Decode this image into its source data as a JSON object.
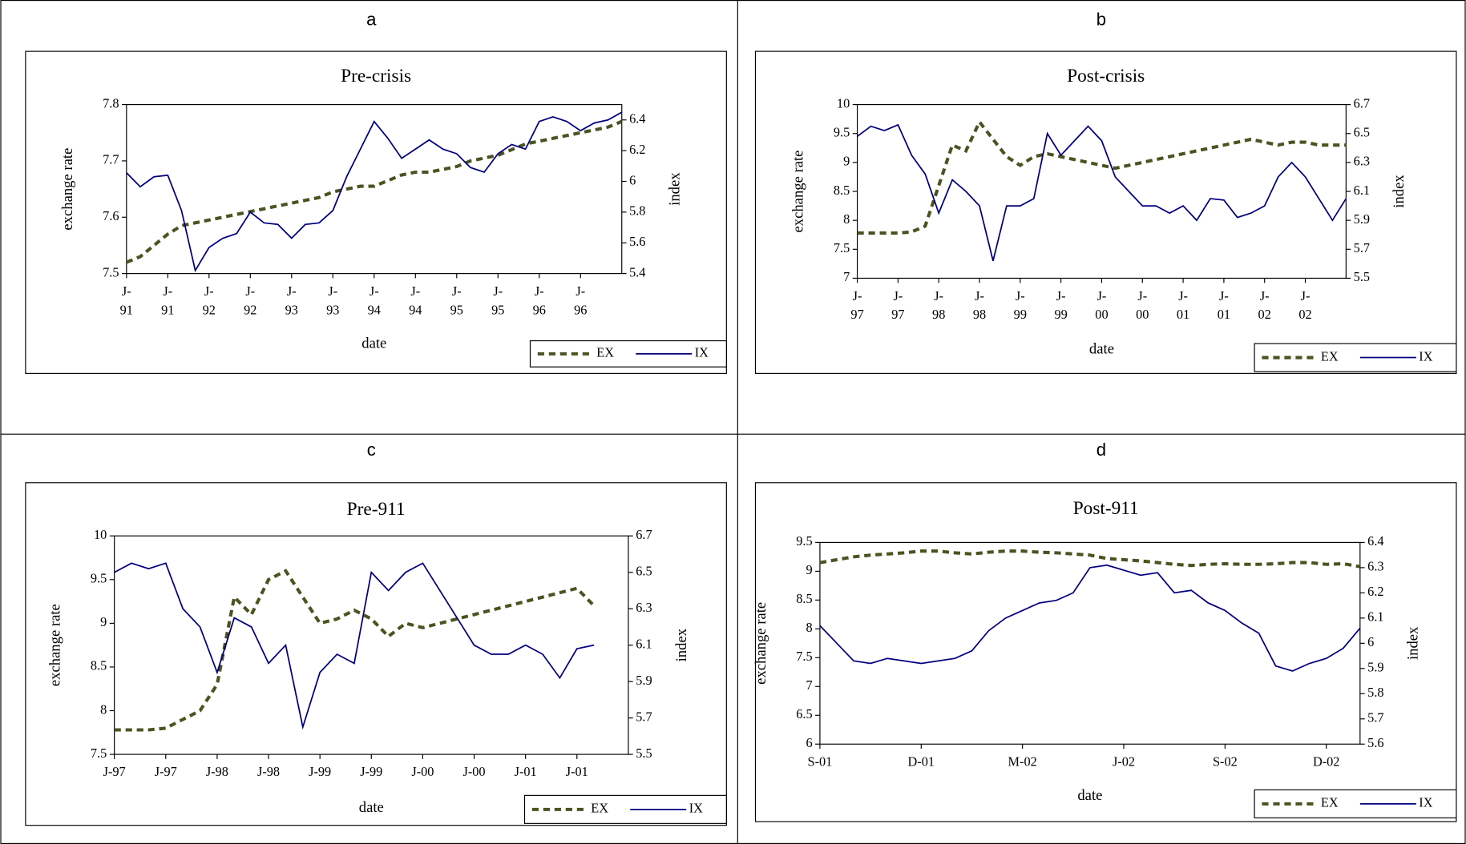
{
  "chart_data": [
    {
      "panel": "a",
      "type": "line",
      "title": "Pre-crisis",
      "xlabel": "date",
      "ylabel": "exchange rate",
      "y2label": "index",
      "x": [
        0,
        2,
        4,
        6,
        8,
        10,
        12,
        14,
        16,
        18,
        20,
        22,
        24,
        26,
        28,
        30,
        32,
        34,
        36,
        38,
        40,
        42,
        44,
        46,
        48,
        50,
        52,
        54,
        56,
        58,
        60,
        62,
        64,
        66,
        68,
        70,
        72
      ],
      "xlim": [
        0,
        72
      ],
      "xticks": [
        {
          "value": 0,
          "label": "J-91"
        },
        {
          "value": 6,
          "label": "J-91"
        },
        {
          "value": 12,
          "label": "J-92"
        },
        {
          "value": 18,
          "label": "J-92"
        },
        {
          "value": 24,
          "label": "J-93"
        },
        {
          "value": 30,
          "label": "J-93"
        },
        {
          "value": 36,
          "label": "J-94"
        },
        {
          "value": 42,
          "label": "J-94"
        },
        {
          "value": 48,
          "label": "J-95"
        },
        {
          "value": 54,
          "label": "J-95"
        },
        {
          "value": 60,
          "label": "J-96"
        },
        {
          "value": 66,
          "label": "J-96"
        }
      ],
      "xtick_wrap": true,
      "ylim": [
        7.5,
        7.8
      ],
      "yticks": [
        7.5,
        7.6,
        7.7,
        7.8
      ],
      "y2lim": [
        5.4,
        6.5
      ],
      "y2ticks": [
        5.4,
        5.6,
        5.8,
        6,
        6.2,
        6.4
      ],
      "legend": "lower right",
      "series": [
        {
          "name": "EX",
          "color": "#4b5320",
          "dash": true,
          "values": [
            7.52,
            7.53,
            7.55,
            7.57,
            7.585,
            7.59,
            7.595,
            7.6,
            7.605,
            7.61,
            7.615,
            7.62,
            7.625,
            7.63,
            7.635,
            7.645,
            7.65,
            7.655,
            7.655,
            7.665,
            7.675,
            7.68,
            7.68,
            7.685,
            7.69,
            7.7,
            7.705,
            7.71,
            7.72,
            7.73,
            7.735,
            7.74,
            7.745,
            7.75,
            7.755,
            7.76,
            7.77
          ]
        },
        {
          "name": "IX",
          "color": "#000080",
          "axis": "y2",
          "values": [
            6.056,
            5.965,
            6.03,
            6.04,
            5.81,
            5.42,
            5.57,
            5.63,
            5.66,
            5.8,
            5.73,
            5.72,
            5.63,
            5.72,
            5.73,
            5.81,
            6.03,
            6.21,
            6.39,
            6.28,
            6.15,
            6.21,
            6.27,
            6.21,
            6.18,
            6.09,
            6.06,
            6.18,
            6.24,
            6.21,
            6.39,
            6.42,
            6.39,
            6.33,
            6.38,
            6.4,
            6.45
          ]
        }
      ]
    },
    {
      "panel": "b",
      "type": "line",
      "title": "Post-crisis",
      "xlabel": "date",
      "ylabel": "exchange rate",
      "y2label": "index",
      "x": [
        0,
        2,
        4,
        6,
        8,
        10,
        12,
        14,
        16,
        18,
        20,
        22,
        24,
        26,
        28,
        30,
        32,
        34,
        36,
        38,
        40,
        42,
        44,
        46,
        48,
        50,
        52,
        54,
        56,
        58,
        60,
        62,
        64,
        66,
        68,
        70,
        72
      ],
      "xlim": [
        0,
        72
      ],
      "xticks": [
        {
          "value": 0,
          "label": "J-97"
        },
        {
          "value": 6,
          "label": "J-97"
        },
        {
          "value": 12,
          "label": "J-98"
        },
        {
          "value": 18,
          "label": "J-98"
        },
        {
          "value": 24,
          "label": "J-99"
        },
        {
          "value": 30,
          "label": "J-99"
        },
        {
          "value": 36,
          "label": "J-00"
        },
        {
          "value": 42,
          "label": "J-00"
        },
        {
          "value": 48,
          "label": "J-01"
        },
        {
          "value": 54,
          "label": "J-01"
        },
        {
          "value": 60,
          "label": "J-02"
        },
        {
          "value": 66,
          "label": "J-02"
        }
      ],
      "xtick_wrap": true,
      "ylim": [
        7,
        10
      ],
      "yticks": [
        7,
        7.5,
        8,
        8.5,
        9,
        9.5,
        10
      ],
      "y2lim": [
        5.5,
        6.7
      ],
      "y2ticks": [
        5.5,
        5.7,
        5.9,
        6.1,
        6.3,
        6.5,
        6.7
      ],
      "legend": "lower right",
      "series": [
        {
          "name": "EX",
          "color": "#4b5320",
          "dash": true,
          "values": [
            7.78,
            7.78,
            7.78,
            7.78,
            7.8,
            7.9,
            8.6,
            9.3,
            9.2,
            9.7,
            9.4,
            9.1,
            8.95,
            9.1,
            9.15,
            9.1,
            9.05,
            9.0,
            8.95,
            8.9,
            8.95,
            9.0,
            9.05,
            9.1,
            9.15,
            9.2,
            9.25,
            9.3,
            9.35,
            9.4,
            9.35,
            9.3,
            9.35,
            9.35,
            9.3,
            9.3,
            9.3
          ]
        },
        {
          "name": "IX",
          "color": "#000080",
          "axis": "y2",
          "values": [
            6.48,
            6.55,
            6.52,
            6.56,
            6.35,
            6.22,
            5.95,
            6.18,
            6.1,
            6.0,
            5.62,
            6.0,
            6.0,
            6.05,
            6.5,
            6.35,
            6.45,
            6.55,
            6.45,
            6.2,
            6.1,
            6.0,
            6.0,
            5.95,
            6.0,
            5.9,
            6.05,
            6.04,
            5.92,
            5.95,
            6.0,
            6.2,
            6.3,
            6.2,
            6.05,
            5.9,
            6.05
          ]
        }
      ]
    },
    {
      "panel": "c",
      "type": "line",
      "title": "Pre-911",
      "xlabel": "date",
      "ylabel": "exchange rate",
      "y2label": "index",
      "x": [
        0,
        2,
        4,
        6,
        8,
        10,
        12,
        14,
        16,
        18,
        20,
        22,
        24,
        26,
        28,
        30,
        32,
        34,
        36,
        38,
        40,
        42,
        44,
        46,
        48,
        50,
        52,
        54,
        56
      ],
      "xlim": [
        0,
        60
      ],
      "xticks": [
        {
          "value": 0,
          "label": "J-97"
        },
        {
          "value": 6,
          "label": "J-97"
        },
        {
          "value": 12,
          "label": "J-98"
        },
        {
          "value": 18,
          "label": "J-98"
        },
        {
          "value": 24,
          "label": "J-99"
        },
        {
          "value": 30,
          "label": "J-99"
        },
        {
          "value": 36,
          "label": "J-00"
        },
        {
          "value": 42,
          "label": "J-00"
        },
        {
          "value": 48,
          "label": "J-01"
        },
        {
          "value": 54,
          "label": "J-01"
        }
      ],
      "xtick_wrap": false,
      "ylim": [
        7.5,
        10
      ],
      "yticks": [
        7.5,
        8,
        8.5,
        9,
        9.5,
        10
      ],
      "y2lim": [
        5.5,
        6.7
      ],
      "y2ticks": [
        5.5,
        5.7,
        5.9,
        6.1,
        6.3,
        6.5,
        6.7
      ],
      "legend": "lower right",
      "series": [
        {
          "name": "EX",
          "color": "#4b5320",
          "dash": true,
          "values": [
            7.78,
            7.78,
            7.78,
            7.8,
            7.9,
            8.0,
            8.3,
            9.3,
            9.1,
            9.5,
            9.6,
            9.3,
            9.0,
            9.05,
            9.15,
            9.05,
            8.85,
            9.0,
            8.95,
            9.0,
            9.05,
            9.1,
            9.15,
            9.2,
            9.25,
            9.3,
            9.35,
            9.4,
            9.2
          ]
        },
        {
          "name": "IX",
          "color": "#000080",
          "axis": "y2",
          "values": [
            6.5,
            6.55,
            6.52,
            6.55,
            6.3,
            6.2,
            5.95,
            6.25,
            6.2,
            6.0,
            6.1,
            5.65,
            5.95,
            6.05,
            6.0,
            6.5,
            6.4,
            6.5,
            6.55,
            6.4,
            6.25,
            6.1,
            6.05,
            6.05,
            6.1,
            6.05,
            5.92,
            6.08,
            6.1
          ]
        }
      ]
    },
    {
      "panel": "d",
      "type": "line",
      "title": "Post-911",
      "xlabel": "date",
      "ylabel": "exchange rate",
      "y2label": "index",
      "x": [
        0,
        0.5,
        1,
        1.5,
        2,
        2.5,
        3,
        3.5,
        4,
        4.5,
        5,
        5.5,
        6,
        6.5,
        7,
        7.5,
        8,
        8.5,
        9,
        9.5,
        10,
        10.5,
        11,
        11.5,
        12,
        12.5,
        13,
        13.5,
        14,
        14.5,
        15,
        15.5,
        16
      ],
      "xlim": [
        0,
        16
      ],
      "xticks": [
        {
          "value": 0,
          "label": "S-01"
        },
        {
          "value": 3,
          "label": "D-01"
        },
        {
          "value": 6,
          "label": "M-02"
        },
        {
          "value": 9,
          "label": "J-02"
        },
        {
          "value": 12,
          "label": "S-02"
        },
        {
          "value": 15,
          "label": "D-02"
        }
      ],
      "xtick_wrap": false,
      "ylim": [
        6,
        9.5
      ],
      "yticks": [
        6,
        6.5,
        7,
        7.5,
        8,
        8.5,
        9,
        9.5
      ],
      "y2lim": [
        5.6,
        6.4
      ],
      "y2ticks": [
        5.6,
        5.7,
        5.8,
        5.9,
        6,
        6.1,
        6.2,
        6.3,
        6.4
      ],
      "legend": "lower right",
      "series": [
        {
          "name": "EX",
          "color": "#4b5320",
          "dash": true,
          "values": [
            9.15,
            9.2,
            9.25,
            9.28,
            9.3,
            9.32,
            9.35,
            9.35,
            9.32,
            9.3,
            9.33,
            9.35,
            9.35,
            9.33,
            9.32,
            9.3,
            9.28,
            9.22,
            9.2,
            9.18,
            9.15,
            9.12,
            9.1,
            9.12,
            9.13,
            9.12,
            9.12,
            9.13,
            9.15,
            9.15,
            9.12,
            9.13,
            9.08
          ]
        },
        {
          "name": "IX",
          "color": "#000080",
          "axis": "y2",
          "values": [
            6.07,
            6.0,
            5.93,
            5.92,
            5.94,
            5.93,
            5.92,
            5.93,
            5.94,
            5.97,
            6.05,
            6.1,
            6.13,
            6.16,
            6.17,
            6.2,
            6.3,
            6.31,
            6.29,
            6.27,
            6.28,
            6.2,
            6.21,
            6.16,
            6.13,
            6.08,
            6.04,
            5.91,
            5.89,
            5.92,
            5.94,
            5.98,
            6.06
          ]
        }
      ]
    }
  ]
}
